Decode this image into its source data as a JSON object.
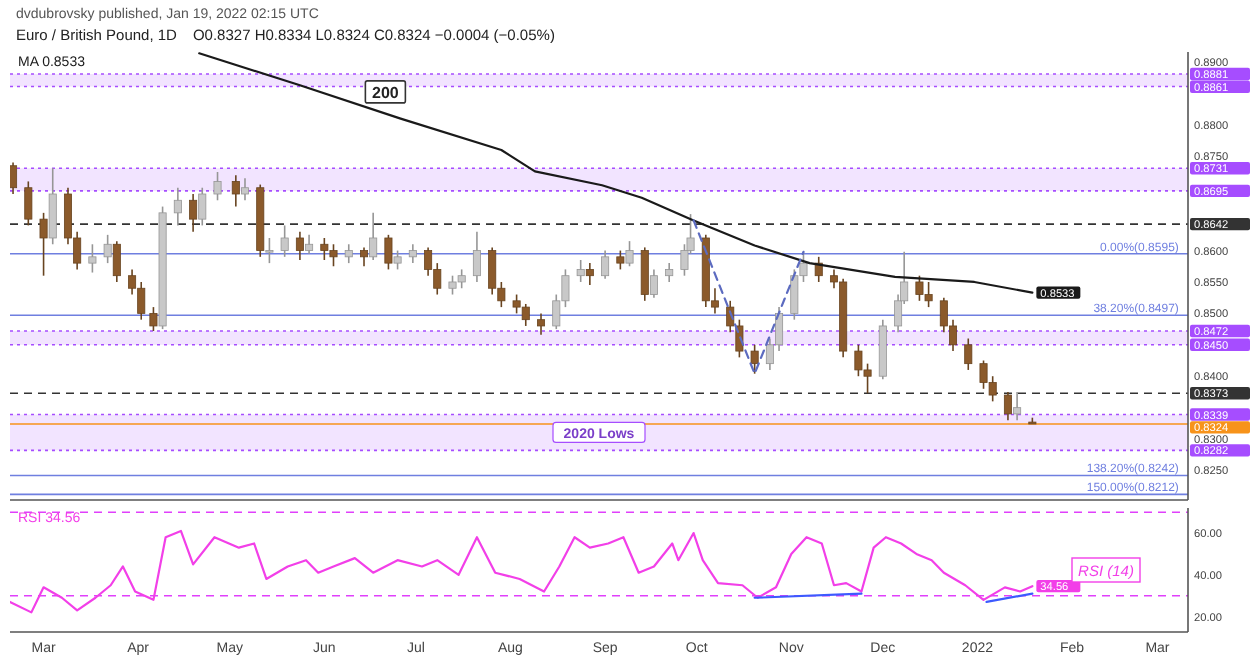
{
  "chart_data": [
    {
      "type": "candlestick",
      "title": "Euro / British Pound, 1D",
      "subtitle": "O0.8327 H0.8334 L0.8324 C0.8324 −0.0004 (−0.05%)",
      "annotations": [
        "dvdubrovsky published, Jan 19, 2022 02:15 UTC",
        {
          "text": "200",
          "x": "2021-06-21",
          "y": 0.8827
        },
        {
          "text": "0.00%(0.8595)",
          "x": "2022-03-08",
          "y": 0.8595
        },
        {
          "text": "38.20%(0.8497)",
          "x": "2022-03-08",
          "y": 0.8497
        },
        {
          "text": "138.20%(0.8242)",
          "x": "2022-03-08",
          "y": 0.8242
        },
        {
          "text": "150.00%(0.8212)",
          "x": "2022-03-08",
          "y": 0.8212
        }
      ],
      "xlim": [
        "2021-02-18",
        "2022-03-11"
      ],
      "ylim": [
        0.8203,
        0.8916
      ],
      "yticks": [
        {
          "value": 0.89,
          "label": "0.8900"
        },
        {
          "value": 0.88,
          "label": "0.8800"
        },
        {
          "value": 0.875,
          "label": "0.8750"
        },
        {
          "value": 0.86,
          "label": "0.8600"
        },
        {
          "value": 0.855,
          "label": "0.8550"
        },
        {
          "value": 0.85,
          "label": "0.8500"
        },
        {
          "value": 0.84,
          "label": "0.8400"
        },
        {
          "value": 0.83,
          "label": "0.8300"
        },
        {
          "value": 0.825,
          "label": "0.8250"
        }
      ],
      "tick_labels": "y",
      "legend": "top left",
      "bands": [
        {
          "axis": "y",
          "from": 0.8861,
          "to": 0.8881,
          "color": "#a64dff"
        },
        {
          "axis": "y",
          "from": 0.8695,
          "to": 0.8731,
          "color": "#a64dff"
        },
        {
          "axis": "y",
          "from": 0.845,
          "to": 0.8472,
          "color": "#a64dff"
        },
        {
          "axis": "y",
          "from": 0.8282,
          "to": 0.8339,
          "label": "2020 Lows",
          "color": "#a64dff"
        }
      ],
      "ref_lines": [
        {
          "axis": "y",
          "value": 0.8881,
          "label": "0.8881",
          "color": "#a64dff",
          "line_style": "dotted"
        },
        {
          "axis": "y",
          "value": 0.8861,
          "label": "0.8861",
          "color": "#a64dff",
          "line_style": "dotted"
        },
        {
          "axis": "y",
          "value": 0.8731,
          "label": "0.8731",
          "color": "#a64dff",
          "line_style": "dotted"
        },
        {
          "axis": "y",
          "value": 0.8695,
          "label": "0.8695",
          "color": "#a64dff",
          "line_style": "dotted"
        },
        {
          "axis": "y",
          "value": 0.8472,
          "label": "0.8472",
          "color": "#a64dff",
          "line_style": "dotted"
        },
        {
          "axis": "y",
          "value": 0.845,
          "label": "0.8450",
          "color": "#a64dff",
          "line_style": "dotted"
        },
        {
          "axis": "y",
          "value": 0.8339,
          "label": "0.8339",
          "color": "#a64dff",
          "line_style": "dotted"
        },
        {
          "axis": "y",
          "value": 0.8282,
          "label": "0.8282",
          "color": "#a64dff",
          "line_style": "dotted"
        },
        {
          "axis": "y",
          "value": 0.8642,
          "label": "0.8642",
          "color": "#333333",
          "line_style": "dashed"
        },
        {
          "axis": "y",
          "value": 0.8373,
          "label": "0.8373",
          "color": "#333333",
          "line_style": "dashed"
        },
        {
          "axis": "y",
          "value": 0.8324,
          "label": "0.8324",
          "color": "#f7931a",
          "line_style": "solid"
        },
        {
          "axis": "y",
          "value": 0.8595,
          "color": "#6f7fe0",
          "line_style": "solid"
        },
        {
          "axis": "y",
          "value": 0.8497,
          "color": "#6f7fe0",
          "line_style": "solid"
        },
        {
          "axis": "y",
          "value": 0.8242,
          "color": "#6f7fe0",
          "line_style": "solid"
        },
        {
          "axis": "y",
          "value": 0.8212,
          "color": "#6f7fe0",
          "line_style": "solid"
        }
      ],
      "series": [
        {
          "x": [
            "2021-02-19",
            "2021-02-24",
            "2021-03-01",
            "2021-03-04",
            "2021-03-09",
            "2021-03-12",
            "2021-03-17",
            "2021-03-22",
            "2021-03-25",
            "2021-03-30",
            "2021-04-02",
            "2021-04-06",
            "2021-04-09",
            "2021-04-14",
            "2021-04-19",
            "2021-04-22",
            "2021-04-27",
            "2021-05-03",
            "2021-05-06",
            "2021-05-11",
            "2021-05-14",
            "2021-05-19",
            "2021-05-24",
            "2021-05-27",
            "2021-06-01",
            "2021-06-04",
            "2021-06-09",
            "2021-06-14",
            "2021-06-17",
            "2021-06-22",
            "2021-06-25",
            "2021-06-30",
            "2021-07-05",
            "2021-07-08",
            "2021-07-13",
            "2021-07-16",
            "2021-07-21",
            "2021-07-26",
            "2021-07-29",
            "2021-08-03",
            "2021-08-06",
            "2021-08-11",
            "2021-08-16",
            "2021-08-19",
            "2021-08-24",
            "2021-08-27",
            "2021-09-01",
            "2021-09-06",
            "2021-09-09",
            "2021-09-14",
            "2021-09-17",
            "2021-09-22",
            "2021-09-27",
            "2021-09-29",
            "2021-10-04",
            "2021-10-07",
            "2021-10-12",
            "2021-10-15",
            "2021-10-20",
            "2021-10-25",
            "2021-10-28",
            "2021-11-02",
            "2021-11-05",
            "2021-11-10",
            "2021-11-15",
            "2021-11-18",
            "2021-11-23",
            "2021-11-26",
            "2021-12-01",
            "2021-12-06",
            "2021-12-08",
            "2021-12-13",
            "2021-12-16",
            "2021-12-21",
            "2021-12-24",
            "2021-12-29",
            "2022-01-03",
            "2022-01-06",
            "2022-01-11",
            "2022-01-14",
            "2022-01-19"
          ],
          "ohlc": [
            [
              0.8735,
              0.874,
              0.869,
              0.87
            ],
            [
              0.87,
              0.871,
              0.864,
              0.865
            ],
            [
              0.865,
              0.866,
              0.856,
              0.862
            ],
            [
              0.862,
              0.8731,
              0.861,
              0.869
            ],
            [
              0.869,
              0.87,
              0.861,
              0.862
            ],
            [
              0.862,
              0.863,
              0.857,
              0.858
            ],
            [
              0.858,
              0.861,
              0.8565,
              0.859
            ],
            [
              0.859,
              0.8625,
              0.858,
              0.861
            ],
            [
              0.861,
              0.8615,
              0.855,
              0.856
            ],
            [
              0.856,
              0.857,
              0.853,
              0.854
            ],
            [
              0.854,
              0.855,
              0.849,
              0.85
            ],
            [
              0.85,
              0.851,
              0.8472,
              0.848
            ],
            [
              0.848,
              0.867,
              0.8475,
              0.866
            ],
            [
              0.866,
              0.87,
              0.864,
              0.868
            ],
            [
              0.868,
              0.869,
              0.863,
              0.865
            ],
            [
              0.865,
              0.87,
              0.864,
              0.869
            ],
            [
              0.869,
              0.8725,
              0.868,
              0.871
            ],
            [
              0.871,
              0.872,
              0.867,
              0.869
            ],
            [
              0.869,
              0.8715,
              0.868,
              0.87
            ],
            [
              0.87,
              0.8705,
              0.859,
              0.86
            ],
            [
              0.86,
              0.862,
              0.858,
              0.86
            ],
            [
              0.86,
              0.864,
              0.859,
              0.862
            ],
            [
              0.862,
              0.863,
              0.8585,
              0.86
            ],
            [
              0.86,
              0.8625,
              0.8595,
              0.861
            ],
            [
              0.861,
              0.862,
              0.8585,
              0.86
            ],
            [
              0.86,
              0.861,
              0.8575,
              0.859
            ],
            [
              0.859,
              0.861,
              0.858,
              0.86
            ],
            [
              0.86,
              0.8605,
              0.8575,
              0.859
            ],
            [
              0.859,
              0.866,
              0.8585,
              0.862
            ],
            [
              0.862,
              0.8625,
              0.857,
              0.858
            ],
            [
              0.858,
              0.86,
              0.857,
              0.859
            ],
            [
              0.859,
              0.861,
              0.858,
              0.86
            ],
            [
              0.86,
              0.8605,
              0.856,
              0.857
            ],
            [
              0.857,
              0.858,
              0.853,
              0.854
            ],
            [
              0.854,
              0.856,
              0.853,
              0.855
            ],
            [
              0.855,
              0.857,
              0.854,
              0.856
            ],
            [
              0.856,
              0.863,
              0.855,
              0.86
            ],
            [
              0.86,
              0.8605,
              0.853,
              0.854
            ],
            [
              0.854,
              0.855,
              0.851,
              0.852
            ],
            [
              0.852,
              0.853,
              0.85,
              0.851
            ],
            [
              0.851,
              0.8515,
              0.848,
              0.849
            ],
            [
              0.849,
              0.85,
              0.8466,
              0.848
            ],
            [
              0.848,
              0.853,
              0.8475,
              0.852
            ],
            [
              0.852,
              0.857,
              0.851,
              0.856
            ],
            [
              0.856,
              0.8585,
              0.855,
              0.857
            ],
            [
              0.857,
              0.858,
              0.8545,
              0.856
            ],
            [
              0.856,
              0.86,
              0.8555,
              0.859
            ],
            [
              0.859,
              0.86,
              0.857,
              0.858
            ],
            [
              0.858,
              0.8615,
              0.8575,
              0.86
            ],
            [
              0.86,
              0.8605,
              0.852,
              0.853
            ],
            [
              0.853,
              0.857,
              0.8525,
              0.856
            ],
            [
              0.856,
              0.858,
              0.855,
              0.857
            ],
            [
              0.857,
              0.861,
              0.856,
              0.86
            ],
            [
              0.86,
              0.8658,
              0.8595,
              0.862
            ],
            [
              0.862,
              0.8625,
              0.851,
              0.852
            ],
            [
              0.852,
              0.854,
              0.85,
              0.851
            ],
            [
              0.851,
              0.852,
              0.847,
              0.848
            ],
            [
              0.848,
              0.849,
              0.843,
              0.844
            ],
            [
              0.844,
              0.845,
              0.8404,
              0.842
            ],
            [
              0.842,
              0.846,
              0.841,
              0.845
            ],
            [
              0.845,
              0.851,
              0.844,
              0.85
            ],
            [
              0.85,
              0.857,
              0.849,
              0.856
            ],
            [
              0.856,
              0.8598,
              0.855,
              0.858
            ],
            [
              0.858,
              0.859,
              0.855,
              0.856
            ],
            [
              0.856,
              0.857,
              0.854,
              0.855
            ],
            [
              0.855,
              0.8555,
              0.843,
              0.844
            ],
            [
              0.844,
              0.845,
              0.84,
              0.841
            ],
            [
              0.841,
              0.842,
              0.8373,
              0.84
            ],
            [
              0.84,
              0.849,
              0.8395,
              0.848
            ],
            [
              0.848,
              0.853,
              0.847,
              0.852
            ],
            [
              0.852,
              0.8598,
              0.8515,
              0.855
            ],
            [
              0.855,
              0.856,
              0.852,
              0.853
            ],
            [
              0.853,
              0.855,
              0.851,
              0.852
            ],
            [
              0.852,
              0.8525,
              0.847,
              0.848
            ],
            [
              0.848,
              0.849,
              0.844,
              0.845
            ],
            [
              0.845,
              0.846,
              0.841,
              0.842
            ],
            [
              0.842,
              0.8425,
              0.838,
              0.839
            ],
            [
              0.839,
              0.84,
              0.836,
              0.837
            ],
            [
              0.837,
              0.8375,
              0.833,
              0.834
            ],
            [
              0.834,
              0.8375,
              0.833,
              0.835
            ],
            [
              0.8327,
              0.8334,
              0.8324,
              0.8324
            ]
          ],
          "colors": [
            "#8b5a2b",
            "#8b5a2b",
            "#8b5a2b",
            "#c8c8c8",
            "#8b5a2b",
            "#8b5a2b",
            "#c8c8c8",
            "#c8c8c8",
            "#8b5a2b",
            "#8b5a2b",
            "#8b5a2b",
            "#8b5a2b",
            "#c8c8c8",
            "#c8c8c8",
            "#8b5a2b",
            "#c8c8c8",
            "#c8c8c8",
            "#8b5a2b",
            "#c8c8c8",
            "#8b5a2b",
            "#c8c8c8",
            "#c8c8c8",
            "#8b5a2b",
            "#c8c8c8",
            "#8b5a2b",
            "#8b5a2b",
            "#c8c8c8",
            "#8b5a2b",
            "#c8c8c8",
            "#8b5a2b",
            "#c8c8c8",
            "#c8c8c8",
            "#8b5a2b",
            "#8b5a2b",
            "#c8c8c8",
            "#c8c8c8",
            "#c8c8c8",
            "#8b5a2b",
            "#8b5a2b",
            "#8b5a2b",
            "#8b5a2b",
            "#8b5a2b",
            "#c8c8c8",
            "#c8c8c8",
            "#c8c8c8",
            "#8b5a2b",
            "#c8c8c8",
            "#8b5a2b",
            "#c8c8c8",
            "#8b5a2b",
            "#c8c8c8",
            "#c8c8c8",
            "#c8c8c8",
            "#c8c8c8",
            "#8b5a2b",
            "#8b5a2b",
            "#8b5a2b",
            "#8b5a2b",
            "#8b5a2b",
            "#c8c8c8",
            "#c8c8c8",
            "#c8c8c8",
            "#c8c8c8",
            "#8b5a2b",
            "#8b5a2b",
            "#8b5a2b",
            "#8b5a2b",
            "#8b5a2b",
            "#c8c8c8",
            "#c8c8c8",
            "#c8c8c8",
            "#8b5a2b",
            "#8b5a2b",
            "#8b5a2b",
            "#8b5a2b",
            "#8b5a2b",
            "#8b5a2b",
            "#8b5a2b",
            "#8b5a2b",
            "#c8c8c8",
            "#8b5a2b"
          ]
        },
        {
          "type": "line",
          "name": "MA",
          "color": "#1a1a1a",
          "x": [
            "2021-04-21",
            "2021-05-24",
            "2021-06-26",
            "2021-07-29",
            "2021-08-09",
            "2021-08-31",
            "2021-09-13",
            "2021-09-30",
            "2021-10-20",
            "2021-11-07",
            "2021-12-05",
            "2021-12-31",
            "2022-01-19"
          ],
          "values": [
            0.8914,
            0.8863,
            0.881,
            0.876,
            0.8726,
            0.8704,
            0.8684,
            0.8648,
            0.8608,
            0.858,
            0.8558,
            0.855,
            0.8533
          ],
          "value_labels": [
            null,
            null,
            null,
            null,
            null,
            null,
            null,
            null,
            null,
            null,
            null,
            null,
            "0.8533"
          ]
        },
        {
          "type": "line",
          "color": "#5c6bc0",
          "line_style": "dashed",
          "x": [
            "2021-09-30",
            "2021-10-20",
            "2021-11-05"
          ],
          "values": [
            0.8648,
            0.8404,
            0.8598
          ]
        }
      ]
    },
    {
      "type": "line",
      "xlim": [
        "2021-02-18",
        "2022-03-11"
      ],
      "ylim": [
        12.6,
        72
      ],
      "yticks": [
        {
          "value": 20,
          "label": "20.00"
        },
        {
          "value": 40,
          "label": "40.00"
        },
        {
          "value": 60,
          "label": "60.00"
        }
      ],
      "xticks": [
        {
          "value": "2021-03-01",
          "label": "Mar"
        },
        {
          "value": "2021-04-01",
          "label": "Apr"
        },
        {
          "value": "2021-05-01",
          "label": "May"
        },
        {
          "value": "2021-06-01",
          "label": "Jun"
        },
        {
          "value": "2021-07-01",
          "label": "Jul"
        },
        {
          "value": "2021-08-01",
          "label": "Aug"
        },
        {
          "value": "2021-09-01",
          "label": "Sep"
        },
        {
          "value": "2021-10-01",
          "label": "Oct"
        },
        {
          "value": "2021-11-01",
          "label": "Nov"
        },
        {
          "value": "2021-12-01",
          "label": "Dec"
        },
        {
          "value": "2022-01-01",
          "label": "2022"
        },
        {
          "value": "2022-02-01",
          "label": "Feb"
        },
        {
          "value": "2022-03-01",
          "label": "Mar"
        }
      ],
      "legend": "top left",
      "annotations": [
        "RSI (14)"
      ],
      "ref_lines": [
        {
          "axis": "y",
          "value": 70,
          "label": null,
          "color": "#e040fb",
          "line_style": "dashed"
        },
        {
          "axis": "y",
          "value": 30,
          "label": null,
          "color": "#e040fb",
          "line_style": "dashed"
        }
      ],
      "series": [
        {
          "name": "RSI",
          "color": "#f23fe8",
          "x": [
            "2021-02-18",
            "2021-02-25",
            "2021-03-01",
            "2021-03-07",
            "2021-03-12",
            "2021-03-18",
            "2021-03-23",
            "2021-03-27",
            "2021-03-31",
            "2021-04-06",
            "2021-04-10",
            "2021-04-15",
            "2021-04-19",
            "2021-04-26",
            "2021-05-04",
            "2021-05-09",
            "2021-05-13",
            "2021-05-20",
            "2021-05-26",
            "2021-05-30",
            "2021-06-04",
            "2021-06-11",
            "2021-06-17",
            "2021-06-25",
            "2021-07-03",
            "2021-07-08",
            "2021-07-15",
            "2021-07-21",
            "2021-07-27",
            "2021-08-04",
            "2021-08-12",
            "2021-08-17",
            "2021-08-22",
            "2021-08-27",
            "2021-09-02",
            "2021-09-07",
            "2021-09-12",
            "2021-09-17",
            "2021-09-23",
            "2021-09-25",
            "2021-09-30",
            "2021-10-03",
            "2021-10-08",
            "2021-10-16",
            "2021-10-21",
            "2021-10-27",
            "2021-11-01",
            "2021-11-06",
            "2021-11-11",
            "2021-11-15",
            "2021-11-19",
            "2021-11-24",
            "2021-11-28",
            "2021-12-02",
            "2021-12-07",
            "2021-12-12",
            "2021-12-17",
            "2021-12-21",
            "2021-12-28",
            "2022-01-03",
            "2022-01-10",
            "2022-01-15",
            "2022-01-19"
          ],
          "values": [
            27,
            22,
            34,
            29,
            23,
            29,
            35,
            44,
            32,
            28,
            58,
            61,
            45,
            58,
            53,
            55,
            38,
            44,
            47,
            41,
            44,
            48,
            41,
            47,
            44,
            47,
            40,
            58,
            41,
            38,
            32,
            44,
            58,
            53,
            55,
            58,
            41,
            44,
            55,
            47,
            60,
            47,
            36,
            35,
            29,
            34,
            50,
            58,
            55,
            35,
            36,
            32,
            53,
            58,
            55,
            50,
            47,
            41,
            35,
            28,
            34,
            32,
            34.56
          ],
          "value_labels": [
            null,
            null,
            null,
            null,
            null,
            null,
            null,
            null,
            null,
            null,
            null,
            null,
            null,
            null,
            null,
            null,
            null,
            null,
            null,
            null,
            null,
            null,
            null,
            null,
            null,
            null,
            null,
            null,
            null,
            null,
            null,
            null,
            null,
            null,
            null,
            null,
            null,
            null,
            null,
            null,
            null,
            null,
            null,
            null,
            null,
            null,
            null,
            null,
            null,
            null,
            null,
            null,
            null,
            null,
            null,
            null,
            null,
            null,
            null,
            null,
            null,
            null,
            "34.56"
          ]
        },
        {
          "color": "#3d5afe",
          "x": [
            "2021-10-20",
            "2021-11-24"
          ],
          "values": [
            29,
            31
          ]
        },
        {
          "color": "#3d5afe",
          "x": [
            "2022-01-04",
            "2022-01-19"
          ],
          "values": [
            27,
            31
          ]
        }
      ]
    }
  ]
}
